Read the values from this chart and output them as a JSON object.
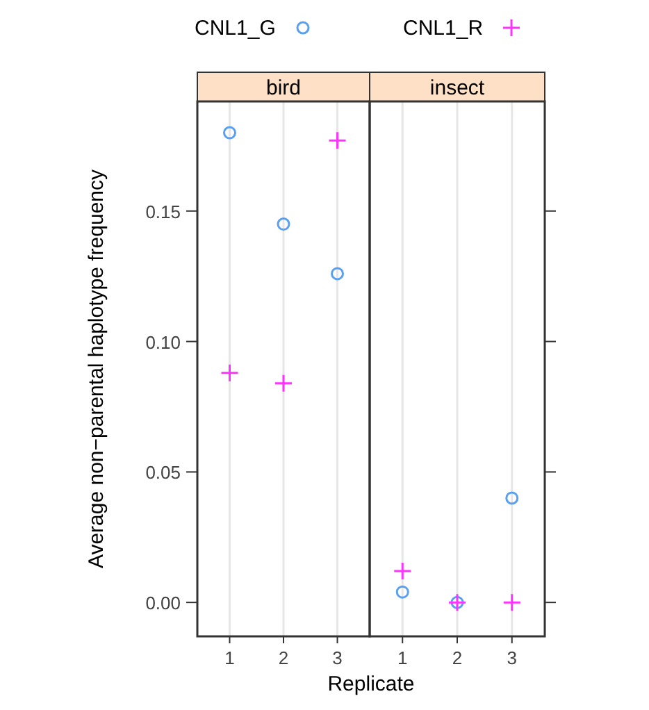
{
  "chart_data": [
    {
      "type": "scatter",
      "title": "bird",
      "xlabel": "Replicate",
      "ylabel": "Average non−parental haplotype frequency",
      "categories": [
        "1",
        "2",
        "3"
      ],
      "ylim": [
        -0.013,
        0.192
      ],
      "yticks": [
        {
          "value": 0,
          "label": "0.00"
        },
        {
          "value": 0.05,
          "label": "0.05"
        },
        {
          "value": 0.1,
          "label": "0.10"
        },
        {
          "value": 0.15,
          "label": "0.15"
        }
      ],
      "grid": "x",
      "legend": "top",
      "series": [
        {
          "name": "CNL1_G",
          "color": "#5aa0f0",
          "marker": "circle",
          "values": [
            0.18,
            0.145,
            0.126
          ]
        },
        {
          "name": "CNL1_R",
          "color": "#ff33ff",
          "marker": "cross",
          "values": [
            0.088,
            0.084,
            0.177
          ]
        }
      ]
    },
    {
      "type": "scatter",
      "title": "insect",
      "categories": [
        "1",
        "2",
        "3"
      ],
      "ylim": [
        -0.013,
        0.192
      ],
      "yticks": [
        {
          "value": 0,
          "label": null
        },
        {
          "value": 0.05,
          "label": null
        },
        {
          "value": 0.1,
          "label": null
        },
        {
          "value": 0.15,
          "label": null
        }
      ],
      "grid": "x",
      "tick_labels": "x",
      "series": [
        {
          "color": "#5aa0f0",
          "marker": "circle",
          "values": [
            0.004,
            0,
            0.04
          ]
        },
        {
          "color": "#ff33ff",
          "marker": "cross",
          "values": [
            0.012,
            0,
            0
          ]
        }
      ]
    }
  ]
}
